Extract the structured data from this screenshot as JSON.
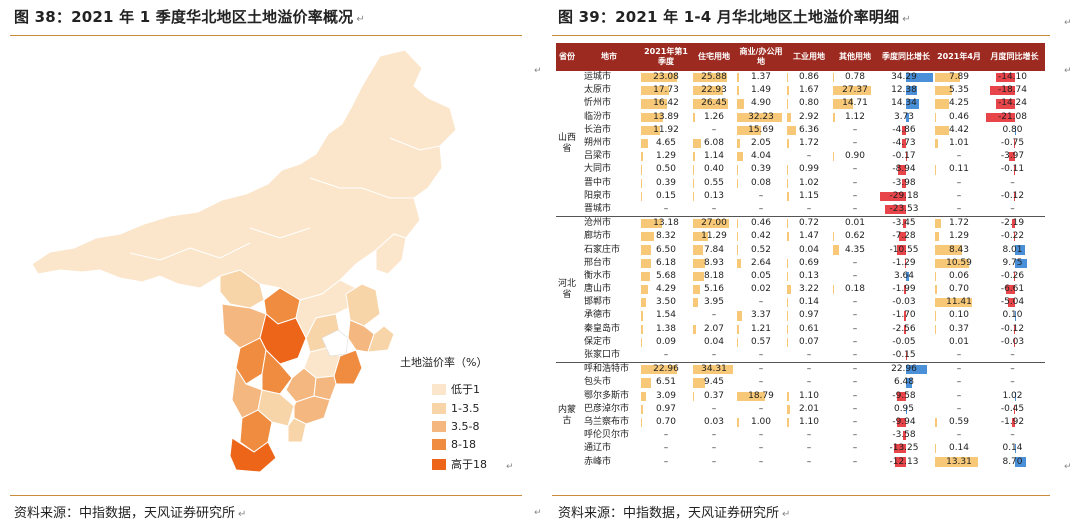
{
  "left": {
    "title": "图 38：2021 年 1 季度华北地区土地溢价率概况",
    "source": "资料来源：中指数据，天风证券研究所",
    "legend": {
      "title": "土地溢价率（%）",
      "items": [
        {
          "label": "低于1",
          "color": "#fbe6cb"
        },
        {
          "label": "1-3.5",
          "color": "#f8d4a9"
        },
        {
          "label": "3.5-8",
          "color": "#f4b77f"
        },
        {
          "label": "8-18",
          "color": "#ef8c40"
        },
        {
          "label": "高于18",
          "color": "#ec6518"
        }
      ]
    }
  },
  "right": {
    "title": "图 39：2021 年 1-4 月华北地区土地溢价率明细",
    "source": "资料来源：中指数据，天风证券研究所",
    "headers": [
      "省份",
      "地市",
      "2021年第1季度",
      "住宅用地",
      "商业/办公用地",
      "工业用地",
      "其他用地",
      "季度同比增长",
      "2021年4月",
      "月度同比增长"
    ],
    "provinces": [
      {
        "name": "山西省",
        "rows": [
          [
            "运城市",
            "23.08",
            "25.88",
            "1.37",
            "0.86",
            "0.78",
            "34.29",
            "7.89",
            "-14.10"
          ],
          [
            "太原市",
            "17.73",
            "22.93",
            "1.49",
            "1.67",
            "27.37",
            "12.38",
            "5.35",
            "-18.74"
          ],
          [
            "忻州市",
            "16.42",
            "26.45",
            "4.90",
            "0.80",
            "14.71",
            "14.34",
            "4.25",
            "-14.24"
          ],
          [
            "临汾市",
            "13.89",
            "1.26",
            "32.23",
            "2.92",
            "1.12",
            "3.73",
            "0.46",
            "-21.08"
          ],
          [
            "长治市",
            "11.92",
            "–",
            "15.69",
            "6.36",
            "–",
            "-4.86",
            "4.42",
            "0.80"
          ],
          [
            "朔州市",
            "4.65",
            "6.08",
            "2.05",
            "1.72",
            "–",
            "-4.73",
            "1.01",
            "-0.75"
          ],
          [
            "吕梁市",
            "1.29",
            "1.14",
            "4.04",
            "–",
            "0.90",
            "-0.17",
            "–",
            "-3.97"
          ],
          [
            "大同市",
            "0.50",
            "0.40",
            "0.39",
            "0.99",
            "–",
            "-8.94",
            "0.11",
            "-0.11"
          ],
          [
            "晋中市",
            "0.39",
            "0.55",
            "0.08",
            "1.02",
            "–",
            "-3.98",
            "–",
            "–"
          ],
          [
            "阳泉市",
            "0.15",
            "0.13",
            "–",
            "1.15",
            "–",
            "-29.18",
            "–",
            "-0.12"
          ],
          [
            "晋城市",
            "–",
            "–",
            "–",
            "–",
            "–",
            "-23.53",
            "–",
            "–"
          ]
        ]
      },
      {
        "name": "河北省",
        "rows": [
          [
            "沧州市",
            "13.18",
            "27.00",
            "0.46",
            "0.72",
            "0.01",
            "-3.45",
            "1.72",
            "-2.19"
          ],
          [
            "廊坊市",
            "8.32",
            "11.29",
            "0.42",
            "1.47",
            "0.62",
            "-7.28",
            "1.29",
            "-0.22"
          ],
          [
            "石家庄市",
            "6.50",
            "7.84",
            "0.52",
            "0.04",
            "4.35",
            "-10.55",
            "8.43",
            "8.01"
          ],
          [
            "邢台市",
            "6.18",
            "8.93",
            "2.64",
            "0.69",
            "–",
            "-1.29",
            "10.59",
            "9.75"
          ],
          [
            "衡水市",
            "5.68",
            "8.18",
            "0.05",
            "0.13",
            "–",
            "3.64",
            "0.06",
            "-0.26"
          ],
          [
            "唐山市",
            "4.29",
            "5.16",
            "0.02",
            "3.22",
            "0.18",
            "-1.99",
            "0.70",
            "-6.61"
          ],
          [
            "邯郸市",
            "3.50",
            "3.95",
            "–",
            "0.14",
            "–",
            "-0.03",
            "11.41",
            "-5.04"
          ],
          [
            "承德市",
            "1.54",
            "–",
            "3.37",
            "0.97",
            "–",
            "-1.70",
            "0.10",
            "0.10"
          ],
          [
            "秦皇岛市",
            "1.38",
            "2.07",
            "1.21",
            "0.61",
            "–",
            "-2.56",
            "0.37",
            "-0.12"
          ],
          [
            "保定市",
            "0.09",
            "0.04",
            "0.57",
            "0.07",
            "–",
            "-0.05",
            "0.01",
            "-0.03"
          ],
          [
            "张家口市",
            "–",
            "–",
            "–",
            "–",
            "–",
            "-0.15",
            "–",
            "–"
          ]
        ]
      },
      {
        "name": "内蒙古",
        "rows": [
          [
            "呼和浩特市",
            "22.96",
            "34.31",
            "–",
            "–",
            "–",
            "22.96",
            "–",
            "–"
          ],
          [
            "包头市",
            "6.51",
            "9.45",
            "–",
            "–",
            "–",
            "6.48",
            "–",
            "–"
          ],
          [
            "鄂尔多斯市",
            "3.09",
            "0.37",
            "18.79",
            "1.10",
            "–",
            "-9.58",
            "–",
            "1.02"
          ],
          [
            "巴彦淖尔市",
            "0.97",
            "–",
            "–",
            "2.01",
            "–",
            "0.95",
            "–",
            "-0.45"
          ],
          [
            "乌兰察布市",
            "0.70",
            "0.03",
            "1.00",
            "1.10",
            "–",
            "-9.94",
            "0.59",
            "-1.92"
          ],
          [
            "呼伦贝尔市",
            "–",
            "–",
            "–",
            "–",
            "–",
            "-3.58",
            "–",
            "–"
          ],
          [
            "通辽市",
            "–",
            "–",
            "–",
            "–",
            "–",
            "-13.25",
            "0.14",
            "0.14"
          ],
          [
            "赤峰市",
            "–",
            "–",
            "–",
            "–",
            "–",
            "-12.13",
            "13.31",
            "8.70"
          ]
        ]
      }
    ]
  }
}
